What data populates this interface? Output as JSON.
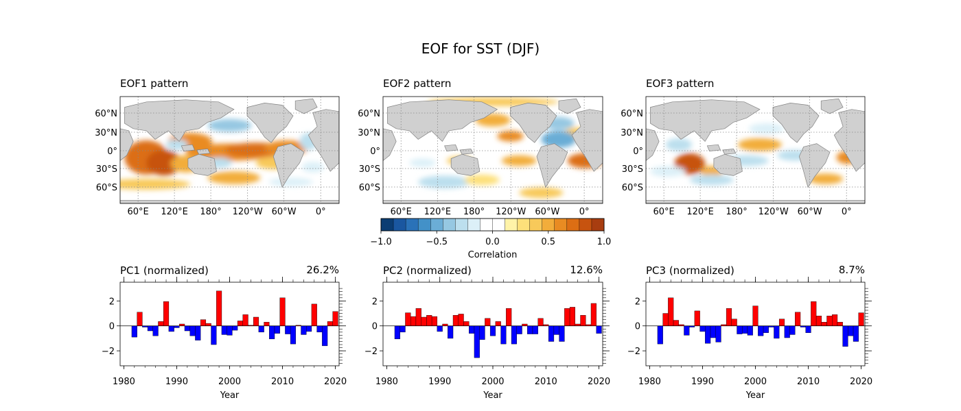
{
  "title": "EOF for SST (DJF)",
  "map_panels": [
    {
      "title": "EOF1 pattern"
    },
    {
      "title": "EOF2 pattern"
    },
    {
      "title": "EOF3 pattern"
    }
  ],
  "map_axes": {
    "lon_ticks": [
      "60°E",
      "120°E",
      "180°",
      "120°W",
      "60°W",
      "0°"
    ],
    "lat_ticks": [
      "60°N",
      "30°N",
      "0°",
      "30°S",
      "60°S"
    ]
  },
  "colorbar": {
    "label": "Correlation",
    "ticks": [
      "−1.0",
      "−0.5",
      "0.0",
      "0.5",
      "1.0"
    ],
    "colors": [
      "#0b3d73",
      "#1a57a0",
      "#2a72b8",
      "#4391c8",
      "#6badd6",
      "#96c8e2",
      "#bcdfee",
      "#dcf0f8",
      "#ffffff",
      "#ffffff",
      "#fff3a8",
      "#fde07a",
      "#f8c95a",
      "#f2ad3b",
      "#e98b22",
      "#dc6e14",
      "#c7530f",
      "#a83d10"
    ]
  },
  "colors": {
    "positive_bar": "#ff0000",
    "negative_bar": "#0000ff",
    "land": "#d0d0d0",
    "coast": "#808080"
  },
  "chart_data": [
    {
      "type": "bar",
      "title": "PC1 (normalized)",
      "variance": "26.2%",
      "xlabel": "Year",
      "ylabel": "",
      "xlim": [
        1979.3,
        2020.7
      ],
      "ylim": [
        -3.2,
        3.5
      ],
      "xticks": [
        1980,
        1990,
        2000,
        2010,
        2020
      ],
      "yticks": [
        -2,
        0,
        2
      ],
      "years": [
        1982,
        1983,
        1984,
        1985,
        1986,
        1987,
        1988,
        1989,
        1990,
        1991,
        1992,
        1993,
        1994,
        1995,
        1996,
        1997,
        1998,
        1999,
        2000,
        2001,
        2002,
        2003,
        2004,
        2005,
        2006,
        2007,
        2008,
        2009,
        2010,
        2011,
        2012,
        2013,
        2014,
        2015,
        2016,
        2017,
        2018,
        2019,
        2020
      ],
      "values": [
        -0.9,
        1.1,
        -0.1,
        -0.4,
        -0.8,
        0.35,
        1.95,
        -0.45,
        -0.15,
        0.15,
        -0.4,
        -0.8,
        -1.15,
        0.5,
        0.2,
        -1.5,
        2.8,
        -0.7,
        -0.75,
        -0.35,
        0.4,
        0.9,
        0.05,
        0.7,
        -0.5,
        0.3,
        -1.05,
        -0.6,
        2.25,
        -0.65,
        -1.45,
        0.05,
        -0.7,
        -0.45,
        1.75,
        -0.5,
        -1.6,
        0.35,
        1.15
      ]
    },
    {
      "type": "bar",
      "title": "PC2 (normalized)",
      "variance": "12.6%",
      "xlabel": "Year",
      "ylabel": "",
      "xlim": [
        1979.3,
        2020.7
      ],
      "ylim": [
        -3.2,
        3.5
      ],
      "xticks": [
        1980,
        1990,
        2000,
        2010,
        2020
      ],
      "yticks": [
        -2,
        0,
        2
      ],
      "years": [
        1982,
        1983,
        1984,
        1985,
        1986,
        1987,
        1988,
        1989,
        1990,
        1991,
        1992,
        1993,
        1994,
        1995,
        1996,
        1997,
        1998,
        1999,
        2000,
        2001,
        2002,
        2003,
        2004,
        2005,
        2006,
        2007,
        2008,
        2009,
        2010,
        2011,
        2012,
        2013,
        2014,
        2015,
        2016,
        2017,
        2018,
        2019,
        2020
      ],
      "values": [
        -1.05,
        -0.5,
        1.05,
        0.75,
        1.4,
        0.7,
        0.85,
        0.75,
        -0.45,
        0.15,
        -1.0,
        0.85,
        0.95,
        0.35,
        -0.6,
        -2.55,
        -1.1,
        0.6,
        -0.8,
        0.35,
        -1.45,
        1.4,
        -1.45,
        -0.65,
        0.15,
        -0.65,
        -0.65,
        0.6,
        0.1,
        -1.25,
        -0.7,
        -1.25,
        1.4,
        1.5,
        0.15,
        0.85,
        0.1,
        1.8,
        -0.6
      ]
    },
    {
      "type": "bar",
      "title": "PC3 (normalized)",
      "variance": "8.7%",
      "xlabel": "Year",
      "ylabel": "",
      "xlim": [
        1979.3,
        2020.7
      ],
      "ylim": [
        -3.2,
        3.5
      ],
      "xticks": [
        1980,
        1990,
        2000,
        2010,
        2020
      ],
      "yticks": [
        -2,
        0,
        2
      ],
      "years": [
        1982,
        1983,
        1984,
        1985,
        1986,
        1987,
        1988,
        1989,
        1990,
        1991,
        1992,
        1993,
        1994,
        1995,
        1996,
        1997,
        1998,
        1999,
        2000,
        2001,
        2002,
        2003,
        2004,
        2005,
        2006,
        2007,
        2008,
        2009,
        2010,
        2011,
        2012,
        2013,
        2014,
        2015,
        2016,
        2017,
        2018,
        2019,
        2020
      ],
      "values": [
        -1.45,
        1.0,
        2.25,
        0.45,
        0.1,
        -0.75,
        -0.1,
        1.2,
        -0.45,
        -1.4,
        -0.95,
        -1.3,
        0.1,
        1.4,
        0.55,
        -0.65,
        -0.6,
        -0.75,
        1.6,
        -0.8,
        -0.55,
        -0.1,
        -1.0,
        0.55,
        -0.95,
        -0.7,
        1.1,
        -0.1,
        -0.55,
        1.95,
        0.8,
        0.3,
        0.8,
        0.9,
        0.3,
        -1.65,
        -0.8,
        -1.25,
        1.05
      ]
    }
  ]
}
